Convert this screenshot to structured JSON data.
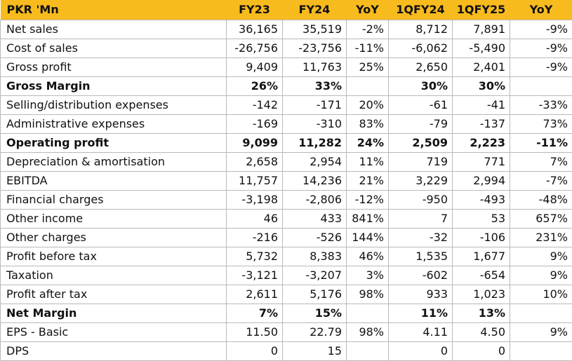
{
  "headers": [
    "PKR 'Mn",
    "FY23",
    "FY24",
    "YoY",
    "1QFY24",
    "1QFY25",
    "YoY"
  ],
  "colors": {
    "header_bg": "#f8bb1e",
    "border": "#b9b9b9",
    "text": "#111111"
  },
  "rows": [
    {
      "label": "Net sales",
      "bold": false,
      "cells": [
        "36,165",
        "35,519",
        "-2%",
        "8,712",
        "7,891",
        "-9%"
      ]
    },
    {
      "label": "Cost of sales",
      "bold": false,
      "cells": [
        "-26,756",
        "-23,756",
        "-11%",
        "-6,062",
        "-5,490",
        "-9%"
      ]
    },
    {
      "label": "Gross profit",
      "bold": false,
      "cells": [
        "9,409",
        "11,763",
        "25%",
        "2,650",
        "2,401",
        "-9%"
      ]
    },
    {
      "label": "Gross Margin",
      "bold": true,
      "cells": [
        "26%",
        "33%",
        "",
        "30%",
        "30%",
        ""
      ]
    },
    {
      "label": "Selling/distribution expenses",
      "bold": false,
      "cells": [
        "-142",
        "-171",
        "20%",
        "-61",
        "-41",
        "-33%"
      ]
    },
    {
      "label": "Administrative expenses",
      "bold": false,
      "cells": [
        "-169",
        "-310",
        "83%",
        "-79",
        "-137",
        "73%"
      ]
    },
    {
      "label": "Operating profit",
      "bold": true,
      "cells": [
        "9,099",
        "11,282",
        "24%",
        "2,509",
        "2,223",
        "-11%"
      ]
    },
    {
      "label": "Depreciation & amortisation",
      "bold": false,
      "cells": [
        "2,658",
        "2,954",
        "11%",
        "719",
        "771",
        "7%"
      ]
    },
    {
      "label": "EBITDA",
      "bold": false,
      "cells": [
        "11,757",
        "14,236",
        "21%",
        "3,229",
        "2,994",
        "-7%"
      ]
    },
    {
      "label": "Financial charges",
      "bold": false,
      "cells": [
        "-3,198",
        "-2,806",
        "-12%",
        "-950",
        "-493",
        "-48%"
      ]
    },
    {
      "label": "Other income",
      "bold": false,
      "cells": [
        "46",
        "433",
        "841%",
        "7",
        "53",
        "657%"
      ]
    },
    {
      "label": "Other charges",
      "bold": false,
      "cells": [
        "-216",
        "-526",
        "144%",
        "-32",
        "-106",
        "231%"
      ]
    },
    {
      "label": "Profit before tax",
      "bold": false,
      "cells": [
        "5,732",
        "8,383",
        "46%",
        "1,535",
        "1,677",
        "9%"
      ]
    },
    {
      "label": "Taxation",
      "bold": false,
      "cells": [
        "-3,121",
        "-3,207",
        "3%",
        "-602",
        "-654",
        "9%"
      ]
    },
    {
      "label": "Profit after tax",
      "bold": false,
      "cells": [
        "2,611",
        "5,176",
        "98%",
        "933",
        "1,023",
        "10%"
      ]
    },
    {
      "label": "Net Margin",
      "bold": true,
      "cells": [
        "7%",
        "15%",
        "",
        "11%",
        "13%",
        ""
      ]
    },
    {
      "label": "EPS - Basic",
      "bold": false,
      "cells": [
        "11.50",
        "22.79",
        "98%",
        "4.11",
        "4.50",
        "9%"
      ]
    },
    {
      "label": "DPS",
      "bold": false,
      "cells": [
        "0",
        "15",
        "",
        "0",
        "0",
        ""
      ]
    }
  ]
}
